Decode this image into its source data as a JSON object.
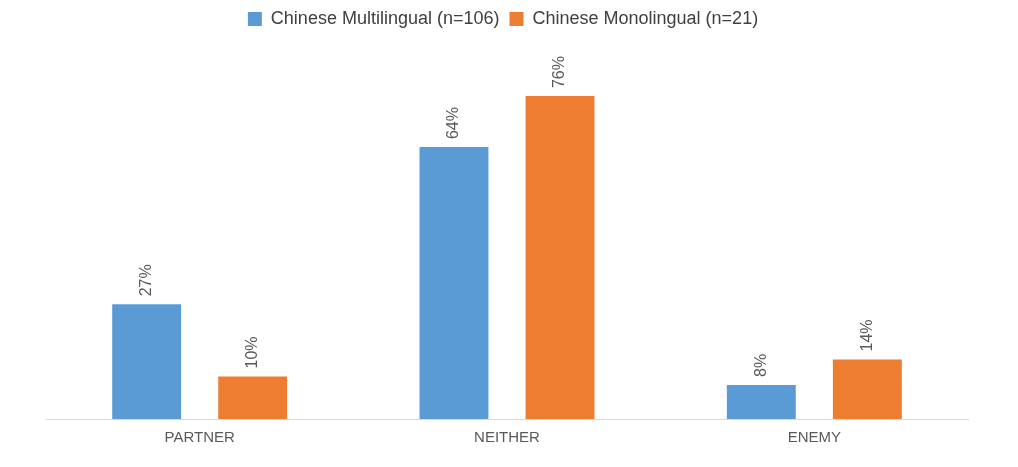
{
  "chart_data": {
    "type": "bar",
    "categories": [
      "PARTNER",
      "NEITHER",
      "ENEMY"
    ],
    "series": [
      {
        "name": "Chinese Multilingual (n=106)",
        "color": "#5b9bd5",
        "values": [
          27,
          64,
          8
        ],
        "value_labels": [
          "27%",
          "64%",
          "8%"
        ]
      },
      {
        "name": "Chinese Monolingual (n=21)",
        "color": "#ed7d31",
        "values": [
          10,
          76,
          14
        ],
        "value_labels": [
          "10%",
          "76%",
          "14%"
        ]
      }
    ],
    "legend": "top",
    "grid": false
  }
}
